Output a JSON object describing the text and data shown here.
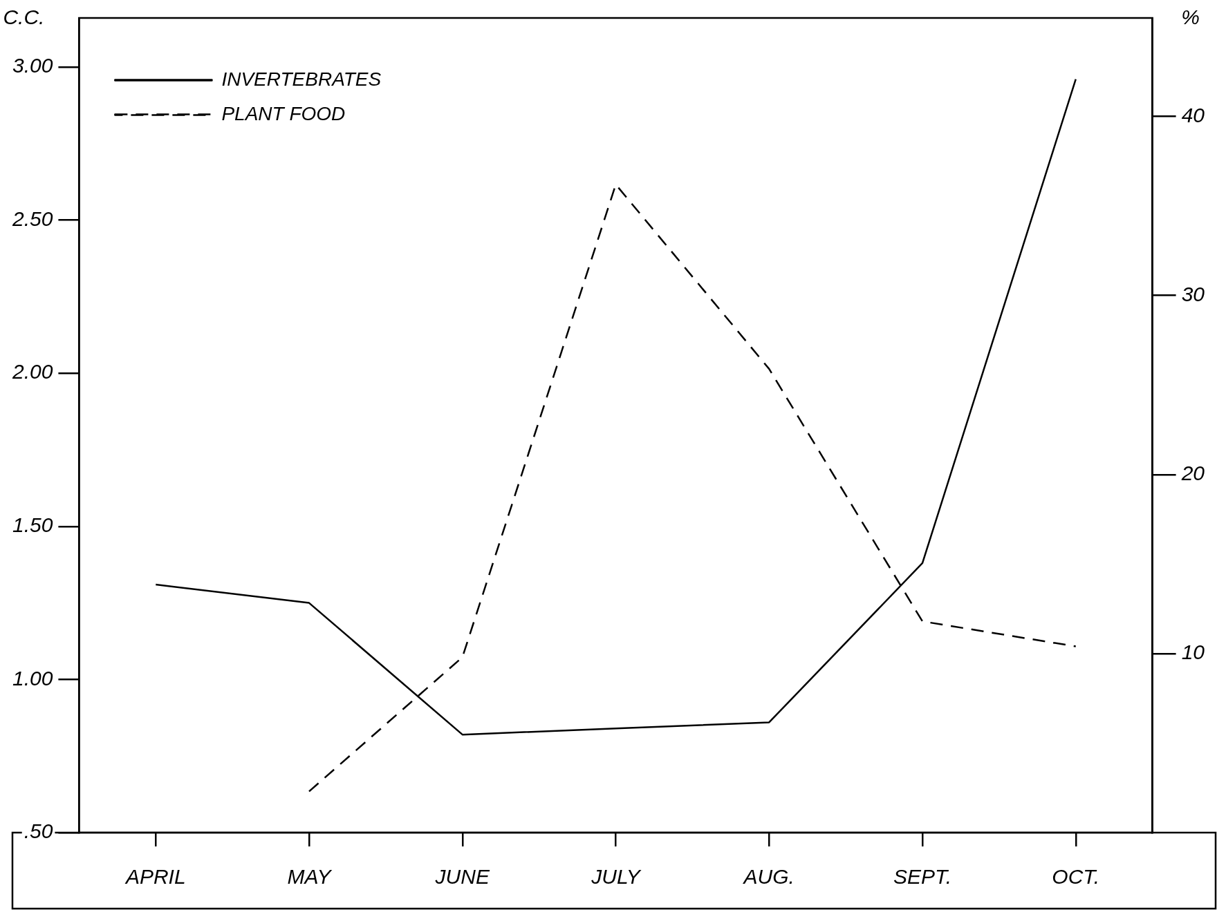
{
  "chart_data": {
    "type": "line",
    "ylabel": "C.C.",
    "y2label": "%",
    "categories": [
      "APRIL",
      "MAY",
      "JUNE",
      "JULY",
      "AUG.",
      "SEPT.",
      "OCT."
    ],
    "series": [
      {
        "name": "INVERTEBRATES",
        "color": "#000000",
        "line_style": "solid",
        "values": [
          1.31,
          1.25,
          0.82,
          0.84,
          0.86,
          1.38,
          2.96
        ]
      },
      {
        "name": "PLANT FOOD",
        "color": "#000000",
        "line_style": "dashed",
        "axis": "y2",
        "values": [
          null,
          2.3,
          9.8,
          36.2,
          25.9,
          11.8,
          10.4
        ]
      }
    ],
    "ylim": [
      0.5,
      3.16
    ],
    "yticks": [
      {
        "value": 0.5,
        "label": ".50"
      },
      {
        "value": 1,
        "label": "1.00"
      },
      {
        "value": 1.5,
        "label": "1.50"
      },
      {
        "value": 2,
        "label": "2.00"
      },
      {
        "value": 2.5,
        "label": "2.50"
      },
      {
        "value": 3,
        "label": "3.00"
      }
    ],
    "y2lim": [
      0,
      45.5
    ],
    "y2ticks": [
      10,
      20,
      30,
      40
    ],
    "grid": false,
    "legend": "top left",
    "marker": "none"
  }
}
